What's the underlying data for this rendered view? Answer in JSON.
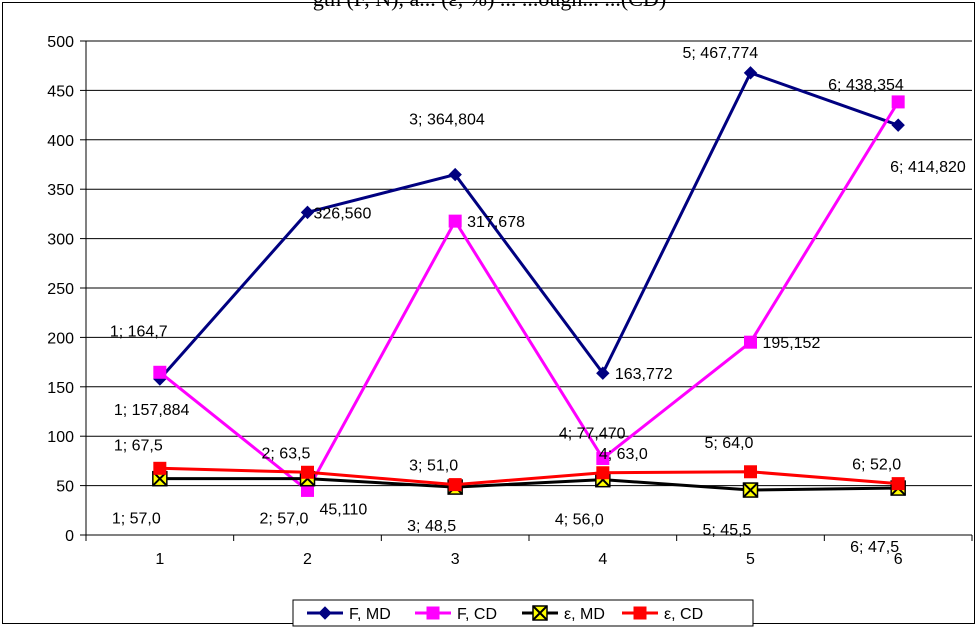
{
  "header": {
    "title_fragment": "gth (F, N), a... (ε, %) ... ...ough... ...(CD)"
  },
  "chart_data": {
    "type": "line",
    "categories": [
      "1",
      "2",
      "3",
      "4",
      "5",
      "6"
    ],
    "ylim": [
      0,
      500
    ],
    "yticks": [
      0,
      50,
      100,
      150,
      200,
      250,
      300,
      350,
      400,
      450,
      500
    ],
    "grid": true,
    "legend_position": "bottom",
    "series": [
      {
        "name": "F, MD",
        "color": "#000080",
        "marker": "diamond",
        "values": [
          157.884,
          326.56,
          364.804,
          163.772,
          467.774,
          414.82
        ],
        "labels": [
          "1; 157,884",
          "326,560",
          "3; 364,804",
          "163,772",
          "5; 467,774",
          "6; 414,820"
        ]
      },
      {
        "name": "F, CD",
        "color": "#FF00FF",
        "marker": "square",
        "values": [
          164.7,
          45.11,
          317.678,
          77.47,
          195.152,
          438.354
        ],
        "labels": [
          "1; 164,7",
          "45,110",
          "317,678",
          "4; 77,470",
          "195,152",
          "6; 438,354"
        ]
      },
      {
        "name": "ε, MD",
        "color": "#000000",
        "marker": "x-square",
        "values": [
          57.0,
          57.0,
          48.5,
          56.0,
          45.5,
          47.5
        ],
        "labels": [
          "1; 57,0",
          "2; 57,0",
          "3; 48,5",
          "4; 56,0",
          "5; 45,5",
          "6; 47,5"
        ]
      },
      {
        "name": "ε, CD",
        "color": "#FF0000",
        "marker": "square",
        "values": [
          67.5,
          63.5,
          51.0,
          63.0,
          64.0,
          52.0
        ],
        "labels": [
          "1; 67,5",
          "2; 63,5",
          "3; 51,0",
          "4; 63,0",
          "5; 64,0",
          "6; 52,0"
        ]
      }
    ]
  }
}
